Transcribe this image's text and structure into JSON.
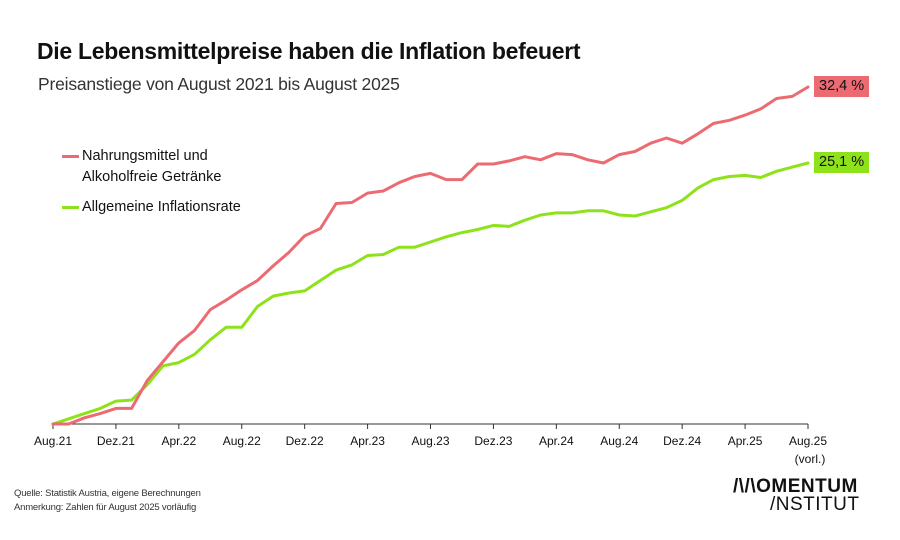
{
  "header": {
    "title": "Die Lebensmittelpreise haben die Inflation befeuert",
    "subtitle": "Preisanstiege von August 2021 bis August 2025"
  },
  "footer": {
    "source": "Quelle: Statistik Austria, eigene Berechnungen",
    "note": "Anmerkung: Zahlen für August 2025 vorläufig"
  },
  "logo": {
    "line1": "/\\/\\OMENTUM",
    "line2": "/NSTITUT"
  },
  "chart_data": {
    "type": "line",
    "title": "Die Lebensmittelpreise haben die Inflation befeuert",
    "subtitle": "Preisanstiege von August 2021 bis August 2025",
    "xlabel": "",
    "ylabel": "",
    "x_tick_labels": [
      "Aug.21",
      "Dez.21",
      "Apr.22",
      "Aug.22",
      "Dez.22",
      "Apr.23",
      "Aug.23",
      "Dez.23",
      "Apr.24",
      "Aug.24",
      "Dez.24",
      "Apr.25",
      "Aug.25"
    ],
    "x_tick_sublabel_last": "(vorl.)",
    "x_months_count": 49,
    "ylim": [
      0,
      33
    ],
    "grid": false,
    "legend_position": "top-left",
    "series": [
      {
        "name": "Nahrungsmittel und Alkoholfreie Getränke",
        "legend_lines": [
          "Nahrungsmittel und",
          "Alkoholfreie Getränke"
        ],
        "color": "#ec6b73",
        "end_label": "32,4 %",
        "values": [
          0.0,
          0.0,
          0.6,
          1.0,
          1.5,
          1.5,
          4.2,
          6.0,
          7.8,
          9.0,
          11.0,
          11.9,
          12.9,
          13.8,
          15.2,
          16.5,
          18.1,
          18.8,
          21.2,
          21.3,
          22.2,
          22.4,
          23.2,
          23.8,
          24.1,
          23.5,
          23.5,
          25.0,
          25.0,
          25.3,
          25.7,
          25.4,
          26.0,
          25.9,
          25.4,
          25.1,
          25.9,
          26.2,
          27.0,
          27.5,
          27.0,
          27.9,
          28.9,
          29.2,
          29.7,
          30.3,
          31.3,
          31.5,
          32.4
        ]
      },
      {
        "name": "Allgemeine Inflationsrate",
        "legend_lines": [
          "Allgemeine Inflationsrate"
        ],
        "color": "#8ee21a",
        "end_label": "25,1 %",
        "values": [
          0.0,
          0.5,
          1.0,
          1.5,
          2.2,
          2.3,
          3.8,
          5.6,
          5.9,
          6.7,
          8.1,
          9.3,
          9.3,
          11.3,
          12.3,
          12.6,
          12.8,
          13.8,
          14.8,
          15.3,
          16.2,
          16.3,
          17.0,
          17.0,
          17.5,
          18.0,
          18.4,
          18.7,
          19.1,
          19.0,
          19.6,
          20.1,
          20.3,
          20.3,
          20.5,
          20.5,
          20.1,
          20.0,
          20.4,
          20.8,
          21.5,
          22.7,
          23.5,
          23.8,
          23.9,
          23.7,
          24.3,
          24.7,
          25.1
        ]
      }
    ]
  }
}
